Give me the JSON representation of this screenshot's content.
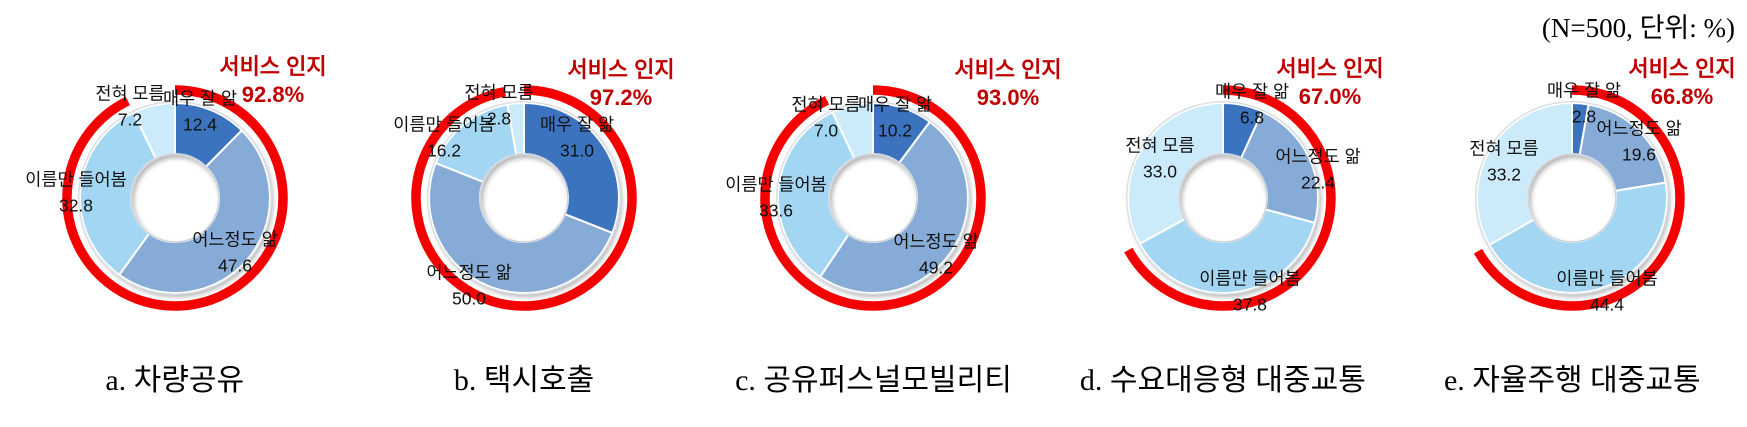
{
  "note": "(N=500, 단위: %)",
  "awareness_label": "서비스 인지",
  "colors": {
    "slice_know_very_well": "#3B73BF",
    "slice_know_somewhat": "#86ABD7",
    "slice_heard_name_only": "#A3D6F3",
    "slice_dont_know": "#CBEBFA",
    "awareness_arc": "#F40000",
    "awareness_text": "#C00000",
    "label_text": "#111111"
  },
  "chart_data": [
    {
      "type": "pie",
      "title": "a. 차량공유",
      "categories": [
        "매우 잘 앎",
        "어느정도 앎",
        "이름만 들어봄",
        "전혀 모름"
      ],
      "values": [
        12.4,
        47.6,
        32.8,
        7.2
      ],
      "value_labels": [
        "12.4",
        "47.6",
        "32.8",
        "7.2"
      ],
      "awareness": {
        "label": "서비스 인지",
        "value": 92.8,
        "display": "92.8%"
      }
    },
    {
      "type": "pie",
      "title": "b. 택시호출",
      "categories": [
        "매우 잘 앎",
        "어느정도 앎",
        "이름만 들어봄",
        "전혀 모름"
      ],
      "values": [
        31.0,
        50.0,
        16.2,
        2.8
      ],
      "value_labels": [
        "31.0",
        "50.0",
        "16.2",
        "2.8"
      ],
      "awareness": {
        "label": "서비스 인지",
        "value": 97.2,
        "display": "97.2%"
      }
    },
    {
      "type": "pie",
      "title": "c. 공유퍼스널모빌리티",
      "categories": [
        "매우 잘 앎",
        "어느정도 앎",
        "이름만 들어봄",
        "전혀 모름"
      ],
      "values": [
        10.2,
        49.2,
        33.6,
        7.0
      ],
      "value_labels": [
        "10.2",
        "49.2",
        "33.6",
        "7.0"
      ],
      "awareness": {
        "label": "서비스 인지",
        "value": 93.0,
        "display": "93.0%"
      }
    },
    {
      "type": "pie",
      "title": "d. 수요대응형 대중교통",
      "categories": [
        "매우 잘 앎",
        "어느정도 앎",
        "이름만 들어봄",
        "전혀 모름"
      ],
      "values": [
        6.8,
        22.4,
        37.8,
        33.0
      ],
      "value_labels": [
        "6.8",
        "22.4",
        "37.8",
        "33.0"
      ],
      "awareness": {
        "label": "서비스 인지",
        "value": 67.0,
        "display": "67.0%"
      }
    },
    {
      "type": "pie",
      "title": "e. 자율주행 대중교통",
      "categories": [
        "매우 잘 앎",
        "어느정도 앎",
        "이름만 들어봄",
        "전혀 모름"
      ],
      "values": [
        2.8,
        19.6,
        44.4,
        33.2
      ],
      "value_labels": [
        "2.8",
        "19.6",
        "44.4",
        "33.2"
      ],
      "awareness": {
        "label": "서비스 인지",
        "value": 66.8,
        "display": "66.8%"
      }
    }
  ]
}
